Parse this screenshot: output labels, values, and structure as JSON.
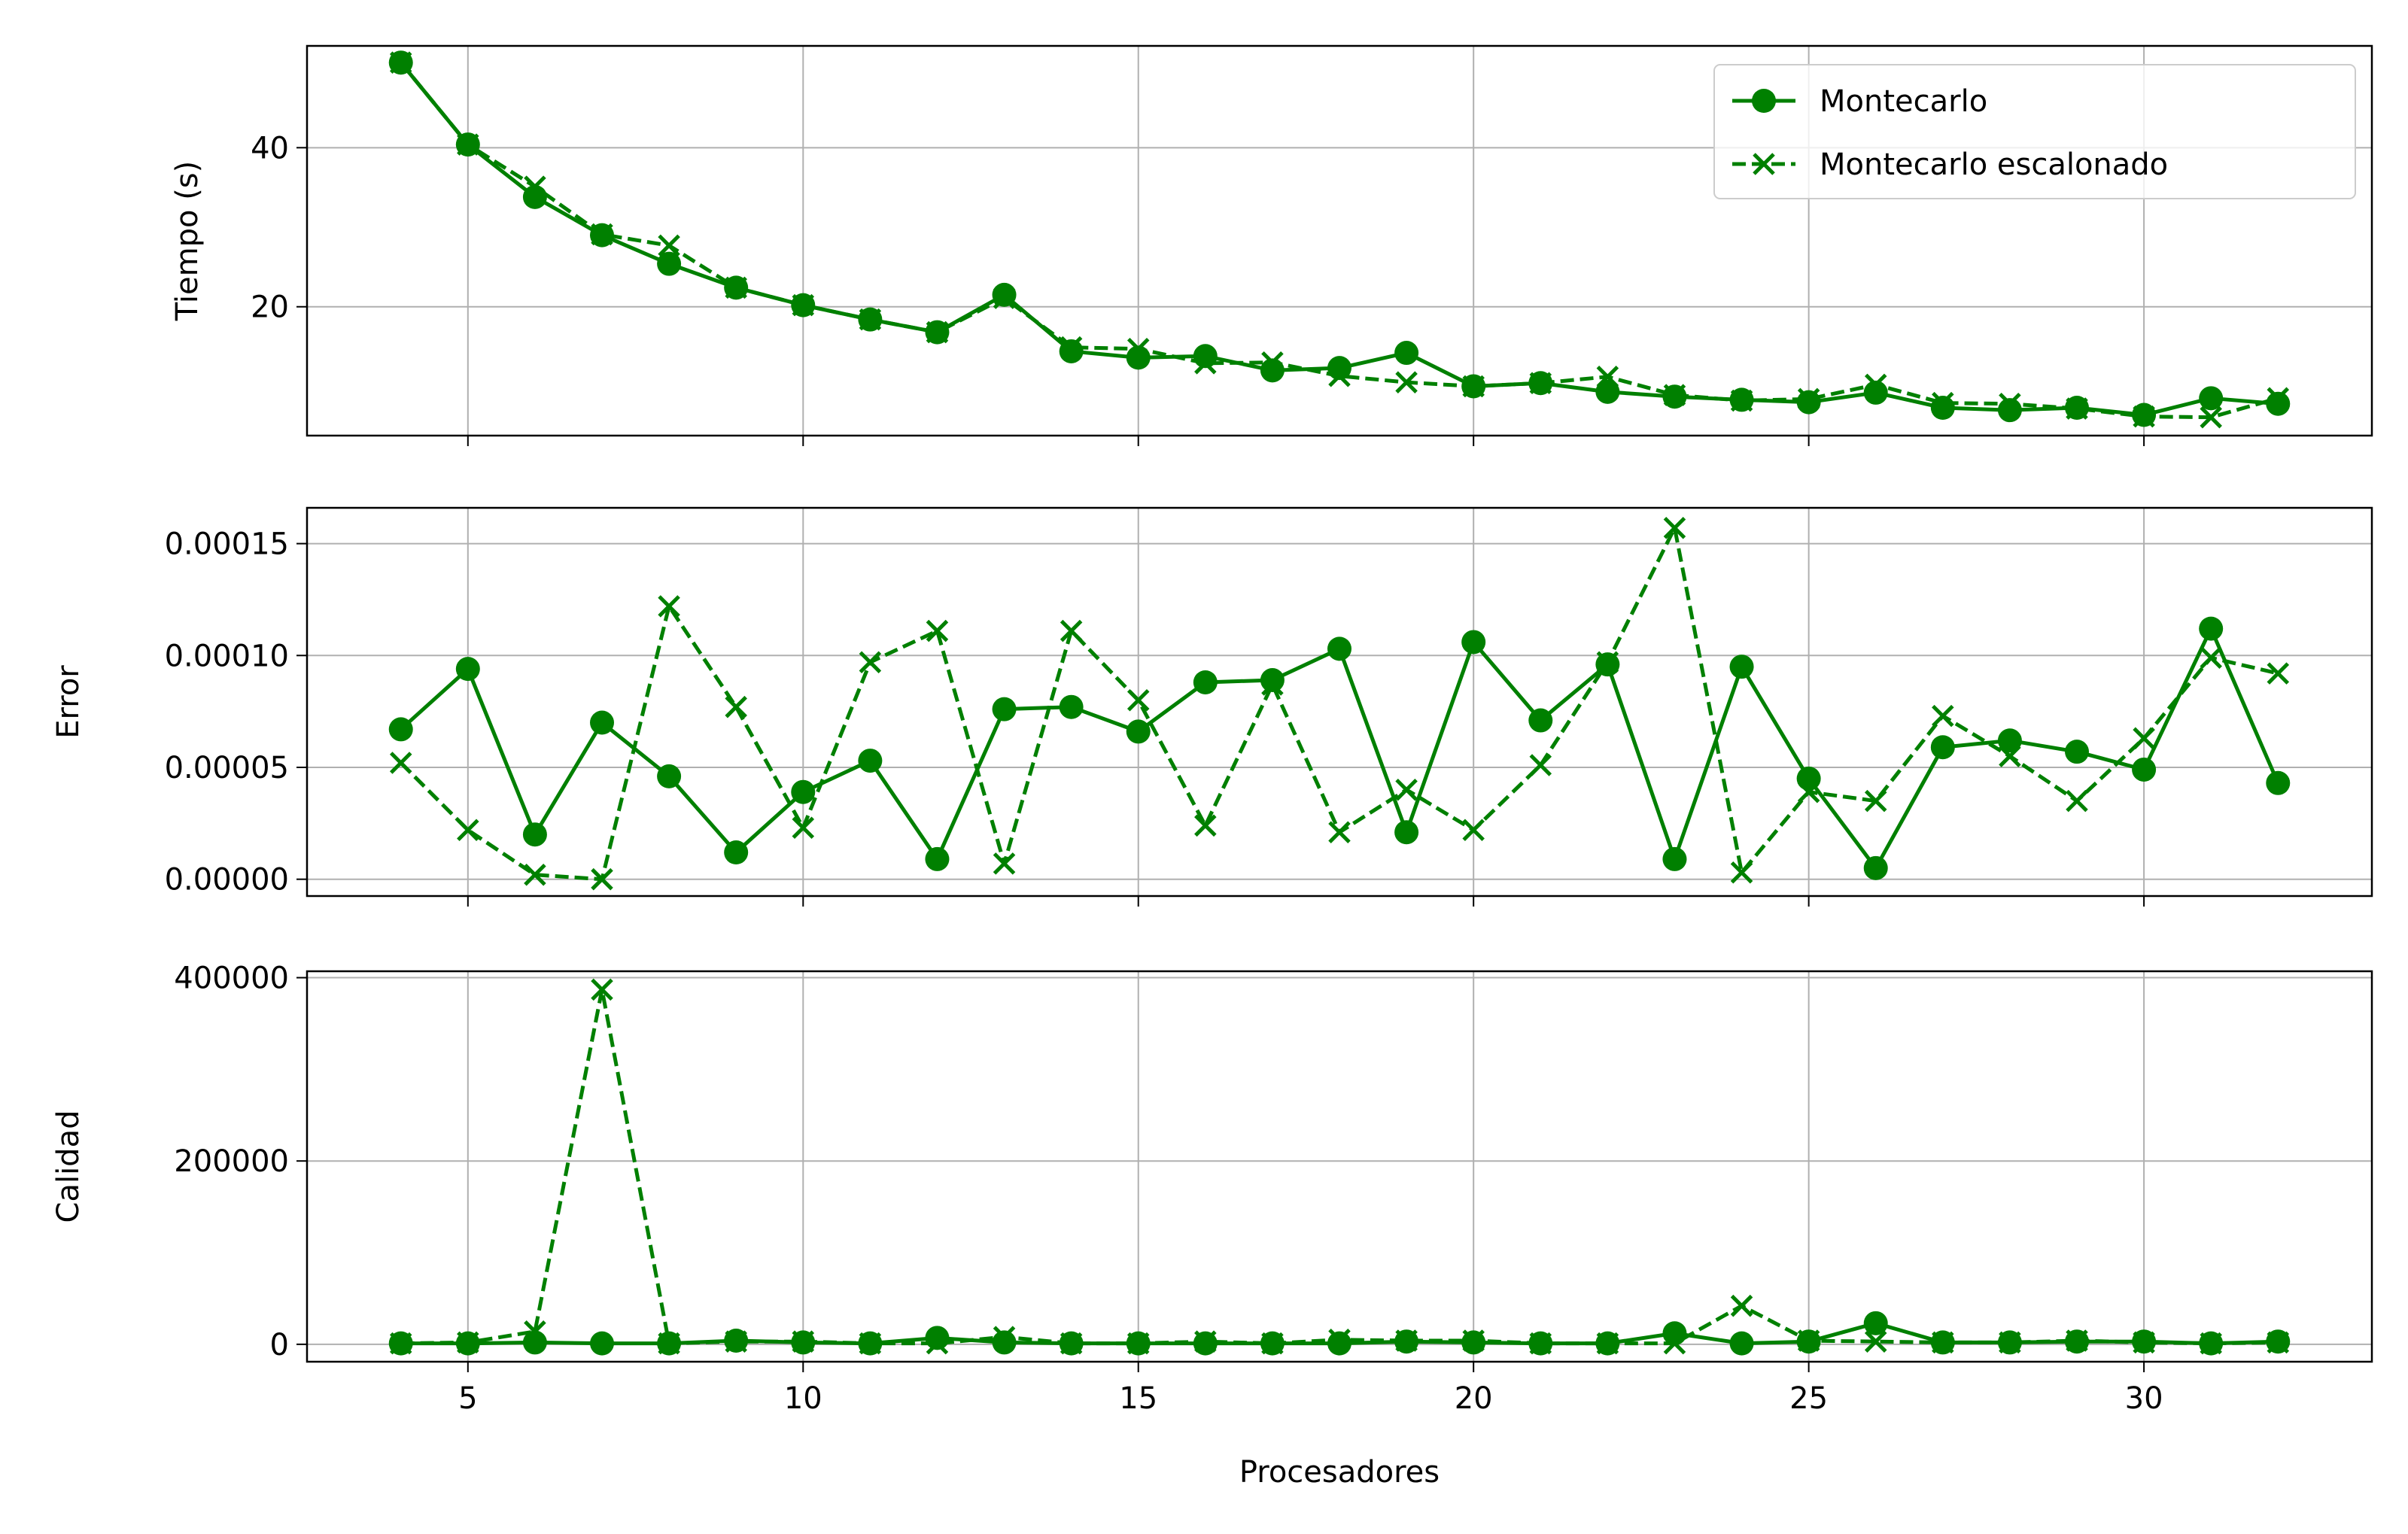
{
  "chart_data": [
    {
      "type": "line",
      "ylabel": "Tiempo (s)",
      "xlim": [
        2.6,
        33.4
      ],
      "ylim": [
        3.8,
        52.8
      ],
      "xticks": [
        5,
        10,
        15,
        20,
        25,
        30
      ],
      "yticks": [
        20,
        40
      ],
      "ytick_labels": [
        "20",
        "40"
      ],
      "grid": true,
      "legend": {
        "placement": "top-right",
        "entries": [
          "Montecarlo",
          "Montecarlo escalonado"
        ]
      },
      "x": [
        4,
        5,
        6,
        7,
        8,
        9,
        10,
        11,
        12,
        13,
        14,
        15,
        16,
        17,
        18,
        19,
        20,
        21,
        22,
        23,
        24,
        25,
        26,
        27,
        28,
        29,
        30,
        31,
        32
      ],
      "series": [
        {
          "name": "Montecarlo",
          "style": "solid",
          "marker": "circle",
          "values": [
            50.7,
            40.4,
            33.8,
            29.0,
            25.4,
            22.4,
            20.2,
            18.4,
            16.8,
            21.5,
            14.4,
            13.6,
            13.8,
            12.0,
            12.3,
            14.2,
            10.0,
            10.4,
            9.3,
            8.7,
            8.3,
            8.0,
            9.2,
            7.3,
            7.0,
            7.3,
            6.4,
            8.5,
            7.8
          ]
        },
        {
          "name": "Montecarlo escalonado",
          "style": "dashed",
          "marker": "x",
          "values": [
            50.7,
            40.4,
            35.1,
            29.1,
            27.7,
            22.4,
            20.2,
            18.4,
            16.8,
            21.1,
            14.9,
            14.7,
            12.9,
            13.0,
            11.3,
            10.5,
            10.0,
            10.4,
            11.2,
            8.9,
            8.2,
            8.4,
            10.2,
            7.9,
            7.8,
            7.2,
            6.2,
            6.1,
            8.5
          ]
        }
      ],
      "colors": {
        "series": "#008000",
        "grid": "#b0b0b0"
      }
    },
    {
      "type": "line",
      "ylabel": "Error",
      "xlim": [
        2.6,
        33.4
      ],
      "ylim": [
        -7.5e-06,
        0.000166
      ],
      "yticks": [
        0,
        5e-05,
        0.0001,
        0.00015
      ],
      "ytick_labels": [
        "0.00000",
        "0.00005",
        "0.00010",
        "0.00015"
      ],
      "grid": true,
      "x": [
        4,
        5,
        6,
        7,
        8,
        9,
        10,
        11,
        12,
        13,
        14,
        15,
        16,
        17,
        18,
        19,
        20,
        21,
        22,
        23,
        24,
        25,
        26,
        27,
        28,
        29,
        30,
        31,
        32
      ],
      "series": [
        {
          "name": "Montecarlo",
          "style": "solid",
          "marker": "circle",
          "values": [
            6.7e-05,
            9.4e-05,
            2e-05,
            7e-05,
            4.6e-05,
            1.2e-05,
            3.9e-05,
            5.3e-05,
            9e-06,
            7.6e-05,
            7.7e-05,
            6.6e-05,
            8.8e-05,
            8.9e-05,
            0.000103,
            2.1e-05,
            0.000106,
            7.1e-05,
            9.6e-05,
            9e-06,
            9.5e-05,
            4.5e-05,
            5e-06,
            5.9e-05,
            6.2e-05,
            5.7e-05,
            4.9e-05,
            0.000112,
            4.3e-05
          ]
        },
        {
          "name": "Montecarlo escalonado",
          "style": "dashed",
          "marker": "x",
          "values": [
            5.2e-05,
            2.2e-05,
            2e-06,
            0.0,
            0.000122,
            7.7e-05,
            2.3e-05,
            9.7e-05,
            0.000111,
            7e-06,
            0.000111,
            8e-05,
            2.4e-05,
            8.7e-05,
            2.1e-05,
            4e-05,
            2.2e-05,
            5.1e-05,
            9.7e-05,
            0.000157,
            3e-06,
            3.9e-05,
            3.5e-05,
            7.3e-05,
            5.5e-05,
            3.5e-05,
            6.3e-05,
            9.9e-05,
            9.2e-05
          ]
        }
      ],
      "colors": {
        "series": "#008000",
        "grid": "#b0b0b0"
      }
    },
    {
      "type": "line",
      "xlabel": "Procesadores",
      "ylabel": "Calidad",
      "xlim": [
        2.6,
        33.4
      ],
      "ylim": [
        -19000,
        407000
      ],
      "xticks": [
        5,
        10,
        15,
        20,
        25,
        30
      ],
      "xtick_labels": [
        "5",
        "10",
        "15",
        "20",
        "25",
        "30"
      ],
      "yticks": [
        0,
        200000,
        400000
      ],
      "ytick_labels": [
        "0",
        "200000",
        "400000"
      ],
      "grid": true,
      "x": [
        4,
        5,
        6,
        7,
        8,
        9,
        10,
        11,
        12,
        13,
        14,
        15,
        16,
        17,
        18,
        19,
        20,
        21,
        22,
        23,
        24,
        25,
        26,
        27,
        28,
        29,
        30,
        31,
        32
      ],
      "series": [
        {
          "name": "Montecarlo",
          "style": "solid",
          "marker": "circle",
          "values": [
            1000,
            1000,
            2000,
            1000,
            1000,
            4000,
            2000,
            1000,
            7000,
            2000,
            1000,
            1000,
            1000,
            1000,
            1000,
            3000,
            2000,
            1000,
            1000,
            12000,
            1000,
            3000,
            23000,
            2000,
            2000,
            3000,
            3000,
            1000,
            3000
          ]
        },
        {
          "name": "Montecarlo escalonado",
          "style": "dashed",
          "marker": "x",
          "values": [
            1000,
            2000,
            14000,
            387000,
            1000,
            3000,
            3000,
            1000,
            1000,
            8000,
            1000,
            1000,
            3000,
            1000,
            5000,
            4000,
            4000,
            1000,
            1000,
            1000,
            42000,
            4000,
            3000,
            2000,
            2000,
            4000,
            2000,
            1000,
            2000
          ]
        }
      ],
      "colors": {
        "series": "#008000",
        "grid": "#b0b0b0"
      }
    }
  ]
}
